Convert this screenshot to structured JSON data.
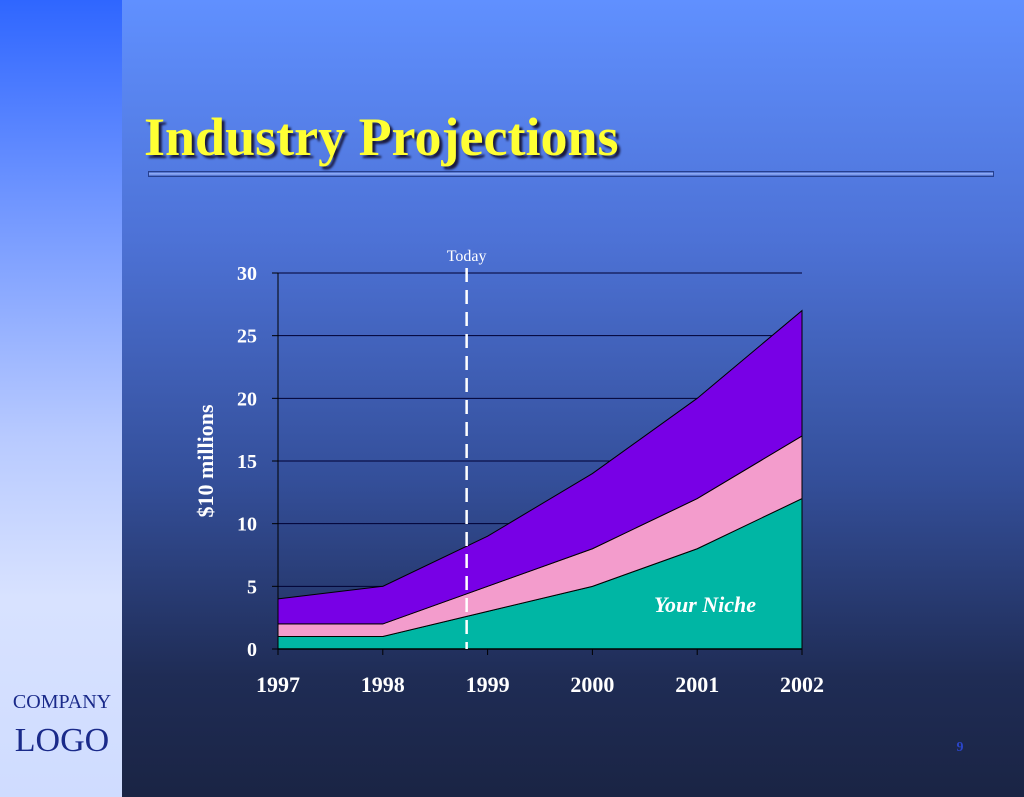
{
  "title": "Industry Projections",
  "logo": {
    "company": "COMPANY",
    "logo": "LOGO"
  },
  "slide_number": "9",
  "colors": {
    "your_niche": "#00b6a4",
    "middle": "#f39ccc",
    "top": "#7800e6",
    "title": "#ffff33",
    "today_line": "#ffffff"
  },
  "chart_data": {
    "type": "area",
    "stacked": true,
    "x": [
      "1997",
      "1998",
      "1999",
      "2000",
      "2001",
      "2002"
    ],
    "series": [
      {
        "name": "Your Niche",
        "values": [
          1,
          1,
          3,
          5,
          8,
          12
        ],
        "color": "#00b6a4"
      },
      {
        "values": [
          1,
          1,
          2,
          3,
          4,
          5
        ],
        "color": "#f39ccc"
      },
      {
        "values": [
          2,
          3,
          4,
          6,
          8,
          10
        ],
        "color": "#7800e6"
      }
    ],
    "ylabel": "$10 millions",
    "ylim": [
      0,
      30
    ],
    "yticks": [
      "0",
      "5",
      "10",
      "15",
      "20",
      "25",
      "30"
    ],
    "grid": true,
    "annotations": [
      {
        "text": "Today",
        "x": 1998.8,
        "style": "dashed vertical line"
      },
      {
        "text": "Your Niche",
        "series": "Your Niche"
      }
    ]
  }
}
